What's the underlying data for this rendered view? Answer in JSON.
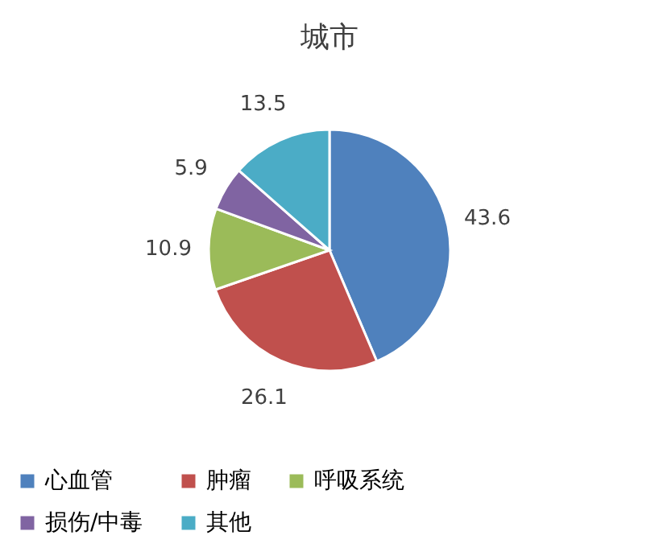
{
  "chart_data": {
    "type": "pie",
    "title": "城市",
    "categories": [
      "心血管",
      "肿瘤",
      "呼吸系统",
      "损伤/中毒",
      "其他"
    ],
    "values": [
      43.6,
      26.1,
      10.9,
      5.9,
      13.5
    ],
    "colors": [
      "#4f81bd",
      "#c0504d",
      "#9bbb59",
      "#8064a2",
      "#4bacc6"
    ],
    "data_labels": true,
    "legend": "bottom"
  }
}
